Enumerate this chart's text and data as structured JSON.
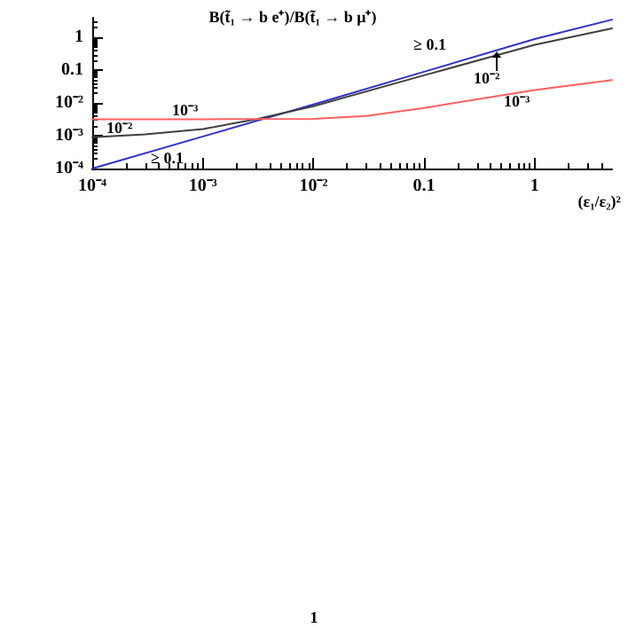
{
  "chart_data": {
    "type": "line",
    "title": "B(t̃₁ → b e⁺)/B(t̃₁ → b μ⁺)",
    "xlabel": "(ε₁/ε₂)²",
    "log": "xy",
    "grid": false,
    "marker": "none",
    "line_style": "solid",
    "xlim": [
      0.0001,
      5
    ],
    "ylim": [
      0.0001,
      4
    ],
    "xticks": [
      {
        "value": 0.0001,
        "label": "10⁻⁴"
      },
      {
        "value": 0.001,
        "label": "10⁻³"
      },
      {
        "value": 0.01,
        "label": "10⁻²"
      },
      0.1,
      1
    ],
    "yticks": [
      {
        "value": 0.0001,
        "label": "10⁻⁴"
      },
      {
        "value": 0.001,
        "label": "10⁻³"
      },
      {
        "value": 0.01,
        "label": "10⁻²"
      },
      0.1,
      1
    ],
    "series": [
      {
        "color": "#3030c8",
        "x": [
          0.0001,
          0.001,
          0.01,
          0.1,
          1,
          5
        ],
        "values": [
          0.0001,
          0.00095,
          0.009,
          0.09,
          0.9,
          3.5
        ]
      },
      {
        "color": "#404040",
        "x": [
          0.0001,
          0.0003,
          0.001,
          0.003,
          0.01,
          0.1,
          1,
          5
        ],
        "values": [
          0.0009,
          0.0011,
          0.0016,
          0.0032,
          0.008,
          0.07,
          0.6,
          1.9
        ]
      },
      {
        "color": "#ff6060",
        "x": [
          0.0001,
          0.001,
          0.01,
          0.03,
          0.1,
          0.3,
          1,
          5
        ],
        "values": [
          0.0032,
          0.0032,
          0.0033,
          0.004,
          0.007,
          0.013,
          0.025,
          0.05
        ]
      }
    ],
    "annotations": [
      "≥ 0.1",
      "10⁻²",
      "10⁻³",
      "10⁻³",
      "10⁻²",
      "≥ 0.1",
      "1"
    ]
  }
}
